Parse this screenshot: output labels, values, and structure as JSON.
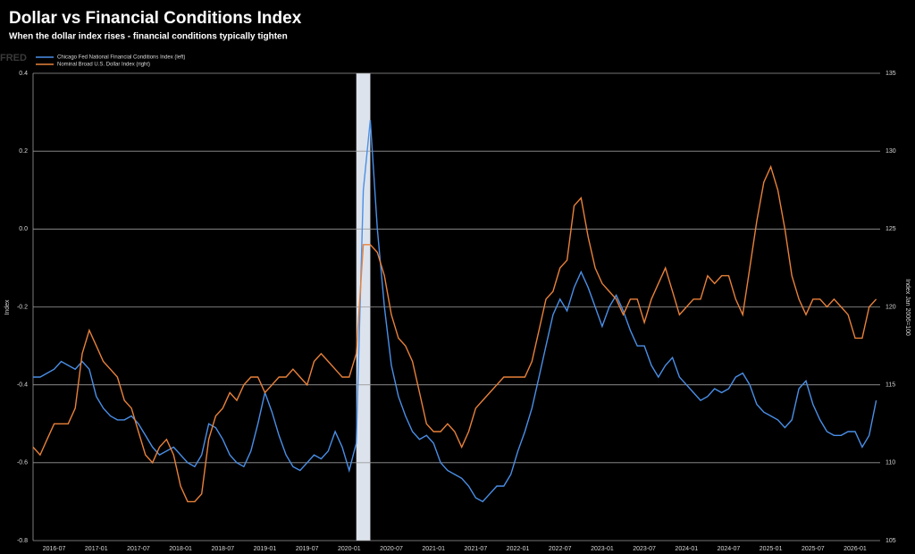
{
  "chart_data": {
    "type": "line",
    "title": "Dollar vs Financial Conditions Index",
    "subtitle": "When the dollar index rises - financial conditions typically tighten",
    "watermark": "FRED",
    "ylabel": "Index",
    "y2label": "Index Jan 2006=100",
    "x": [
      "2016-04",
      "2016-05",
      "2016-06",
      "2016-07",
      "2016-08",
      "2016-09",
      "2016-10",
      "2016-11",
      "2016-12",
      "2017-01",
      "2017-02",
      "2017-03",
      "2017-04",
      "2017-05",
      "2017-06",
      "2017-07",
      "2017-08",
      "2017-09",
      "2017-10",
      "2017-11",
      "2017-12",
      "2018-01",
      "2018-02",
      "2018-03",
      "2018-04",
      "2018-05",
      "2018-06",
      "2018-07",
      "2018-08",
      "2018-09",
      "2018-10",
      "2018-11",
      "2018-12",
      "2019-01",
      "2019-02",
      "2019-03",
      "2019-04",
      "2019-05",
      "2019-06",
      "2019-07",
      "2019-08",
      "2019-09",
      "2019-10",
      "2019-11",
      "2019-12",
      "2020-01",
      "2020-02",
      "2020-03",
      "2020-04",
      "2020-05",
      "2020-06",
      "2020-07",
      "2020-08",
      "2020-09",
      "2020-10",
      "2020-11",
      "2020-12",
      "2021-01",
      "2021-02",
      "2021-03",
      "2021-04",
      "2021-05",
      "2021-06",
      "2021-07",
      "2021-08",
      "2021-09",
      "2021-10",
      "2021-11",
      "2021-12",
      "2022-01",
      "2022-02",
      "2022-03",
      "2022-04",
      "2022-05",
      "2022-06",
      "2022-07",
      "2022-08",
      "2022-09",
      "2022-10",
      "2022-11",
      "2022-12",
      "2023-01",
      "2023-02",
      "2023-03",
      "2023-04",
      "2023-05",
      "2023-06",
      "2023-07",
      "2023-08",
      "2023-09",
      "2023-10",
      "2023-11",
      "2023-12",
      "2024-01",
      "2024-02",
      "2024-03",
      "2024-04",
      "2024-05",
      "2024-06",
      "2024-07",
      "2024-08",
      "2024-09",
      "2024-10",
      "2024-11",
      "2024-12",
      "2025-01",
      "2025-02",
      "2025-03",
      "2025-04",
      "2025-05",
      "2025-06",
      "2025-07",
      "2025-08",
      "2025-09",
      "2025-10",
      "2025-11",
      "2025-12",
      "2026-01",
      "2026-02",
      "2026-03",
      "2026-04"
    ],
    "xticks": [
      "2016-07",
      "2017-01",
      "2017-07",
      "2018-01",
      "2018-07",
      "2019-01",
      "2019-07",
      "2020-01",
      "2020-07",
      "2021-01",
      "2021-07",
      "2022-01",
      "2022-07",
      "2023-01",
      "2023-07",
      "2024-01",
      "2024-07",
      "2025-01",
      "2025-07",
      "2026-01"
    ],
    "shaded": [
      {
        "start": "2020-02",
        "end": "2020-04",
        "color": "#dde3ec"
      }
    ],
    "series": [
      {
        "name": "Chicago Fed National Financial Conditions Index (left)",
        "color": "#4a8fe7",
        "axis": "y",
        "values": [
          -0.38,
          -0.38,
          -0.37,
          -0.36,
          -0.34,
          -0.35,
          -0.36,
          -0.34,
          -0.36,
          -0.43,
          -0.46,
          -0.48,
          -0.49,
          -0.49,
          -0.48,
          -0.5,
          -0.53,
          -0.56,
          -0.58,
          -0.57,
          -0.56,
          -0.58,
          -0.6,
          -0.61,
          -0.58,
          -0.5,
          -0.51,
          -0.54,
          -0.58,
          -0.6,
          -0.61,
          -0.57,
          -0.5,
          -0.42,
          -0.47,
          -0.53,
          -0.58,
          -0.61,
          -0.62,
          -0.6,
          -0.58,
          -0.59,
          -0.57,
          -0.52,
          -0.56,
          -0.62,
          -0.55,
          0.1,
          0.28,
          0.0,
          -0.2,
          -0.35,
          -0.43,
          -0.48,
          -0.52,
          -0.54,
          -0.53,
          -0.55,
          -0.6,
          -0.62,
          -0.63,
          -0.64,
          -0.66,
          -0.69,
          -0.7,
          -0.68,
          -0.66,
          -0.66,
          -0.63,
          -0.57,
          -0.52,
          -0.46,
          -0.38,
          -0.3,
          -0.22,
          -0.18,
          -0.21,
          -0.15,
          -0.11,
          -0.15,
          -0.2,
          -0.25,
          -0.2,
          -0.17,
          -0.21,
          -0.26,
          -0.3,
          -0.3,
          -0.35,
          -0.38,
          -0.35,
          -0.33,
          -0.38,
          -0.4,
          -0.42,
          -0.44,
          -0.43,
          -0.41,
          -0.42,
          -0.41,
          -0.38,
          -0.37,
          -0.4,
          -0.45,
          -0.47,
          -0.48,
          -0.49,
          -0.51,
          -0.49,
          -0.41,
          -0.39,
          -0.45,
          -0.49,
          -0.52,
          -0.53,
          -0.53,
          -0.52,
          -0.52,
          -0.56,
          -0.53,
          -0.44
        ]
      },
      {
        "name": "Nominal Broad U.S. Dollar Index (right)",
        "color": "#e8813a",
        "axis": "y2",
        "values": [
          111,
          110.5,
          111.5,
          112.5,
          112.5,
          112.5,
          113.5,
          117,
          118.5,
          117.5,
          116.5,
          116,
          115.5,
          114,
          113.5,
          112,
          110.5,
          110,
          111,
          111.5,
          110.5,
          108.5,
          107.5,
          107.5,
          108,
          111.5,
          113,
          113.5,
          114.5,
          114,
          115,
          115.5,
          115.5,
          114.5,
          115,
          115.5,
          115.5,
          116,
          115.5,
          115,
          116.5,
          117,
          116.5,
          116,
          115.5,
          115.5,
          117,
          124,
          124,
          123.5,
          122,
          119.5,
          118,
          117.5,
          116.5,
          114.5,
          112.5,
          112,
          112,
          112.5,
          112,
          111,
          112,
          113.5,
          114,
          114.5,
          115,
          115.5,
          115.5,
          115.5,
          115.5,
          116.5,
          118.5,
          120.5,
          121,
          122.5,
          123,
          126.5,
          127,
          124.5,
          122.5,
          121.5,
          121,
          120.5,
          119.5,
          120.5,
          120.5,
          119,
          120.5,
          121.5,
          122.5,
          121,
          119.5,
          120,
          120.5,
          120.5,
          122,
          121.5,
          122,
          122,
          120.5,
          119.5,
          122.5,
          125.5,
          128,
          129,
          127.5,
          125,
          122,
          120.5,
          119.5,
          120.5,
          120.5,
          120,
          120.5,
          120,
          119.5,
          118,
          118,
          120,
          120.5
        ]
      }
    ],
    "ylim": [
      -0.8,
      0.4
    ],
    "yticks": [
      -0.8,
      -0.6,
      -0.4,
      -0.2,
      {
        "value": 0,
        "label": "0.0"
      },
      0.2,
      0.4
    ],
    "y2lim": [
      105,
      135
    ],
    "y2ticks": [
      105,
      110,
      115,
      120,
      125,
      130,
      135
    ],
    "grid": true
  }
}
